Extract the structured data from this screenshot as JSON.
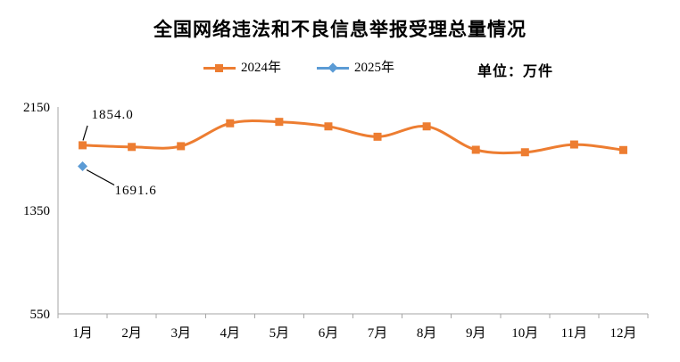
{
  "chart_data": {
    "type": "line",
    "title": "全国网络违法和不良信息举报受理总量情况",
    "unit_label": "单位：万件",
    "categories": [
      "1月",
      "2月",
      "3月",
      "4月",
      "5月",
      "6月",
      "7月",
      "8月",
      "9月",
      "10月",
      "11月",
      "12月"
    ],
    "series": [
      {
        "name": "2024年",
        "color": "#ED7D31",
        "marker": "square",
        "values": [
          1854.0,
          1841,
          1847,
          2024,
          2035,
          2000,
          1920,
          2000,
          1819,
          1800,
          1860,
          1817
        ]
      },
      {
        "name": "2025年",
        "color": "#5B9BD5",
        "marker": "diamond",
        "values": [
          1691.6,
          null,
          null,
          null,
          null,
          null,
          null,
          null,
          null,
          null,
          null,
          null
        ]
      }
    ],
    "y_ticks": [
      2150,
      1350,
      550
    ],
    "ylim": [
      550,
      2150
    ],
    "axis_color": "#A6A6A6",
    "text_color": "#000000",
    "leader_line_color": "#000000",
    "legend_position": "top",
    "grid": false,
    "annotations": [
      {
        "text": "1854.0",
        "series": 0,
        "index": 0
      },
      {
        "text": "1691.6",
        "series": 1,
        "index": 0
      }
    ]
  }
}
